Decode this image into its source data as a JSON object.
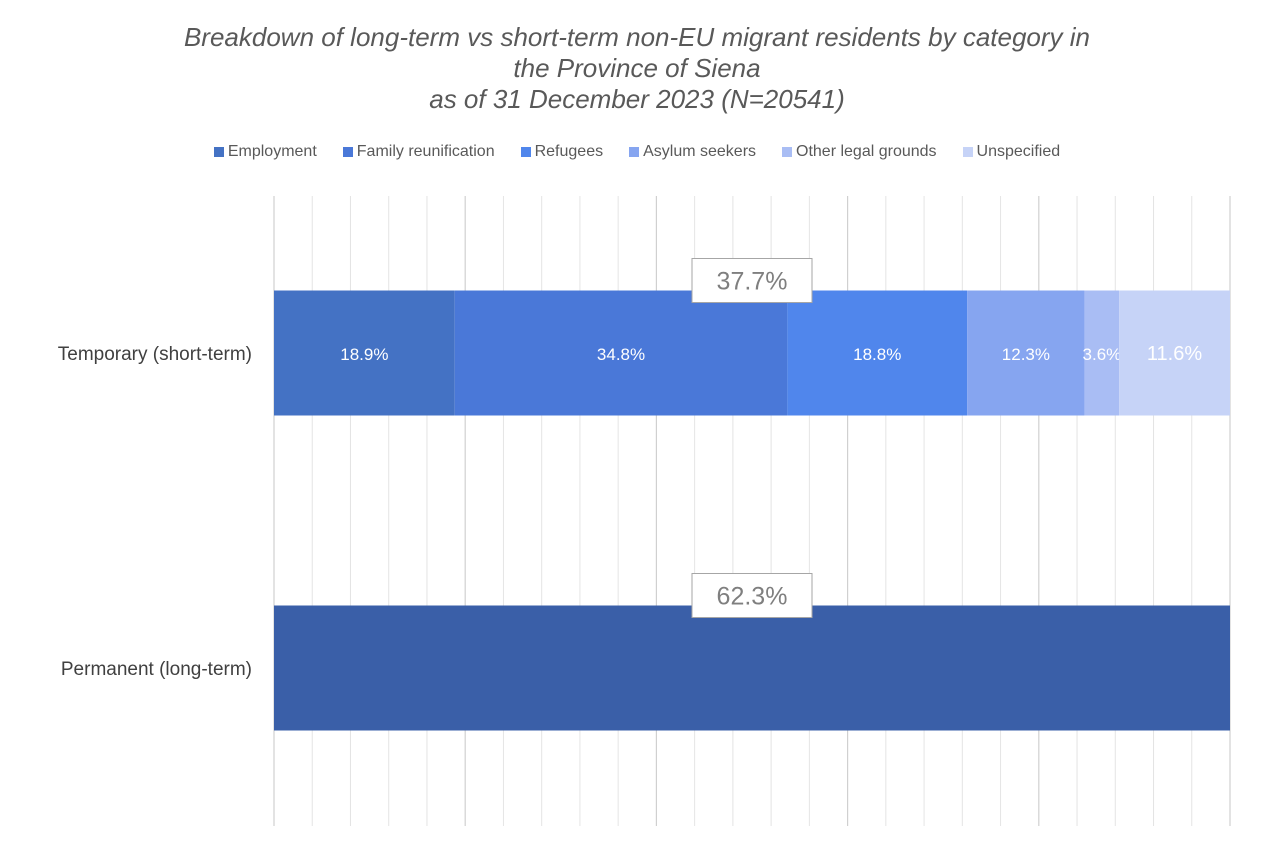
{
  "chart_data": {
    "type": "bar",
    "orientation": "horizontal",
    "stacked": true,
    "title_lines": [
      "Breakdown of long-term vs short-term non-EU migrant residents by category in",
      "the Province of Siena",
      "as of 31 December 2023 (N=20541)"
    ],
    "categories": [
      "Temporary (short-term)",
      "Permanent (long-term)"
    ],
    "category_totals": [
      {
        "category": "Temporary (short-term)",
        "value": 37.7,
        "label": "37.7%"
      },
      {
        "category": "Permanent (long-term)",
        "value": 62.3,
        "label": "62.3%"
      }
    ],
    "series": [
      {
        "name": "Employment",
        "color": "#4472C4",
        "values": [
          18.9,
          null
        ],
        "labels": [
          "18.9%",
          ""
        ]
      },
      {
        "name": "Family reunification",
        "color": "#4A78D8",
        "values": [
          34.8,
          null
        ],
        "labels": [
          "34.8%",
          ""
        ]
      },
      {
        "name": "Refugees",
        "color": "#5086EC",
        "values": [
          18.8,
          null
        ],
        "labels": [
          "18.8%",
          ""
        ]
      },
      {
        "name": "Asylum seekers",
        "color": "#86A5F0",
        "values": [
          12.3,
          null
        ],
        "labels": [
          "12.3%",
          ""
        ]
      },
      {
        "name": "Other legal grounds",
        "color": "#A9BDF4",
        "values": [
          3.6,
          null
        ],
        "labels": [
          "3.6%",
          ""
        ]
      },
      {
        "name": "Unspecified",
        "color": "#C6D3F7",
        "values": [
          11.6,
          null
        ],
        "labels": [
          "11.6%",
          ""
        ]
      }
    ],
    "permanent_bar_color": "#3A5FA8",
    "xlim": [
      0,
      100
    ],
    "grid": true,
    "legend_position": "top"
  }
}
